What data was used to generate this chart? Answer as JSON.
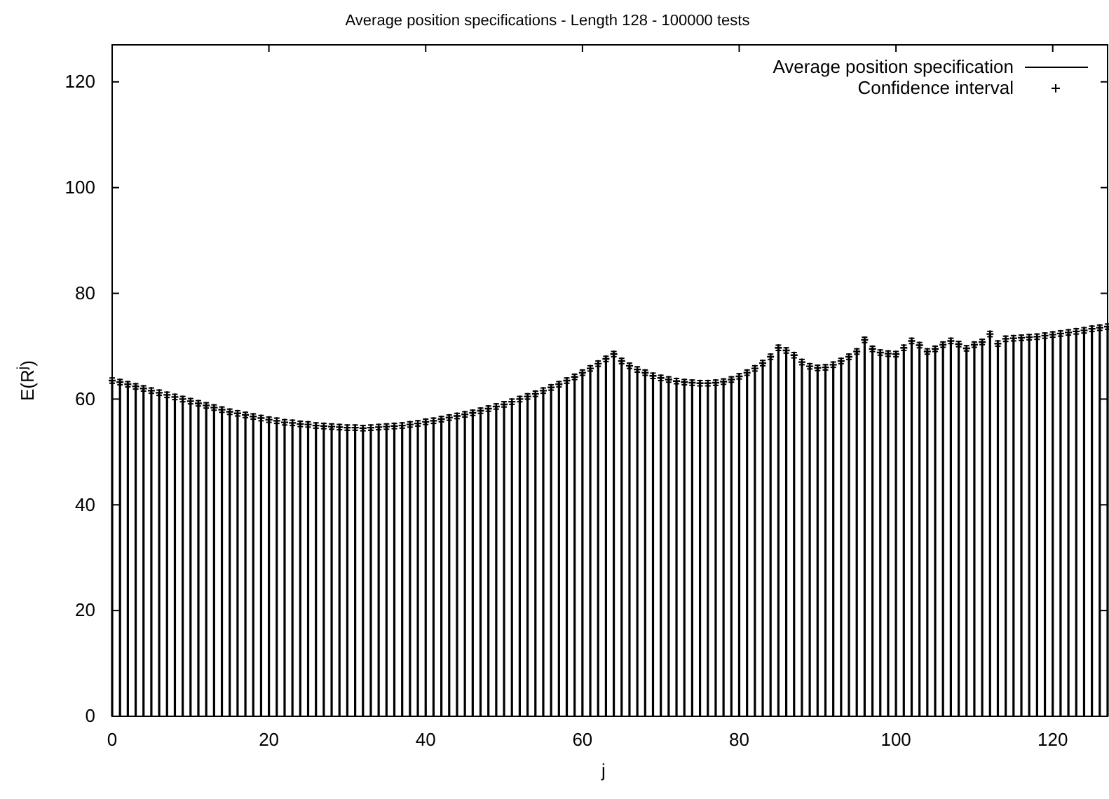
{
  "chart_data": {
    "type": "bar",
    "title": "Average position specifications - Length 128 - 100000 tests",
    "xlabel": "j",
    "ylabel": "E(R$^{j}$)",
    "x": [
      0,
      1,
      2,
      3,
      4,
      5,
      6,
      7,
      8,
      9,
      10,
      11,
      12,
      13,
      14,
      15,
      16,
      17,
      18,
      19,
      20,
      21,
      22,
      23,
      24,
      25,
      26,
      27,
      28,
      29,
      30,
      31,
      32,
      33,
      34,
      35,
      36,
      37,
      38,
      39,
      40,
      41,
      42,
      43,
      44,
      45,
      46,
      47,
      48,
      49,
      50,
      51,
      52,
      53,
      54,
      55,
      56,
      57,
      58,
      59,
      60,
      61,
      62,
      63,
      64,
      65,
      66,
      67,
      68,
      69,
      70,
      71,
      72,
      73,
      74,
      75,
      76,
      77,
      78,
      79,
      80,
      81,
      82,
      83,
      84,
      85,
      86,
      87,
      88,
      89,
      90,
      91,
      92,
      93,
      94,
      95,
      96,
      97,
      98,
      99,
      100,
      101,
      102,
      103,
      104,
      105,
      106,
      107,
      108,
      109,
      110,
      111,
      112,
      113,
      114,
      115,
      116,
      117,
      118,
      119,
      120,
      121,
      122,
      123,
      124,
      125,
      126,
      127
    ],
    "xlim": [
      0,
      127
    ],
    "xticks": [
      0,
      20,
      40,
      60,
      80,
      100,
      120
    ],
    "ylim": [
      0,
      127
    ],
    "yticks": [
      0,
      20,
      40,
      60,
      80,
      100,
      120
    ],
    "grid": false,
    "legend": "top right",
    "series": [
      {
        "name": "Average position specification",
        "color": "#000000",
        "line_style": "solid",
        "values": [
          63.5,
          63.2,
          62.8,
          62.4,
          62.0,
          61.6,
          61.2,
          60.8,
          60.4,
          60.0,
          59.6,
          59.2,
          58.8,
          58.4,
          58.0,
          57.6,
          57.3,
          57.0,
          56.7,
          56.4,
          56.1,
          55.9,
          55.6,
          55.5,
          55.3,
          55.2,
          55.0,
          54.9,
          54.8,
          54.7,
          54.6,
          54.6,
          54.5,
          54.6,
          54.7,
          54.8,
          54.9,
          55.0,
          55.2,
          55.4,
          55.7,
          55.9,
          56.2,
          56.5,
          56.8,
          57.1,
          57.4,
          57.8,
          58.2,
          58.6,
          59.0,
          59.5,
          60.0,
          60.5,
          61.0,
          61.6,
          62.2,
          62.8,
          63.5,
          64.2,
          65.0,
          65.8,
          66.7,
          67.6,
          68.5,
          67.2,
          66.3,
          65.6,
          65.0,
          64.4,
          64.0,
          63.7,
          63.4,
          63.2,
          63.1,
          63.0,
          63.0,
          63.1,
          63.3,
          63.7,
          64.3,
          65.0,
          65.8,
          66.8,
          68.0,
          69.7,
          69.2,
          68.3,
          67.0,
          66.2,
          65.9,
          66.0,
          66.5,
          67.2,
          68.0,
          69.0,
          71.2,
          69.5,
          68.8,
          68.6,
          68.5,
          69.7,
          71.0,
          70.2,
          69.0,
          69.5,
          70.3,
          71.0,
          70.4,
          69.6,
          70.3,
          70.8,
          72.3,
          70.5,
          71.4,
          71.5,
          71.6,
          71.7,
          71.8,
          72.0,
          72.2,
          72.4,
          72.6,
          72.8,
          73.0,
          73.3,
          73.5,
          73.7
        ]
      },
      {
        "name": "Confidence interval",
        "type": "scatter",
        "color": "#000000",
        "marker": "cross",
        "values": [
          63.5,
          63.2,
          62.8,
          62.4,
          62.0,
          61.6,
          61.2,
          60.8,
          60.4,
          60.0,
          59.6,
          59.2,
          58.8,
          58.4,
          58.0,
          57.6,
          57.3,
          57.0,
          56.7,
          56.4,
          56.1,
          55.9,
          55.6,
          55.5,
          55.3,
          55.2,
          55.0,
          54.9,
          54.8,
          54.7,
          54.6,
          54.6,
          54.5,
          54.6,
          54.7,
          54.8,
          54.9,
          55.0,
          55.2,
          55.4,
          55.7,
          55.9,
          56.2,
          56.5,
          56.8,
          57.1,
          57.4,
          57.8,
          58.2,
          58.6,
          59.0,
          59.5,
          60.0,
          60.5,
          61.0,
          61.6,
          62.2,
          62.8,
          63.5,
          64.2,
          65.0,
          65.8,
          66.7,
          67.6,
          68.5,
          67.2,
          66.3,
          65.6,
          65.0,
          64.4,
          64.0,
          63.7,
          63.4,
          63.2,
          63.1,
          63.0,
          63.0,
          63.1,
          63.3,
          63.7,
          64.3,
          65.0,
          65.8,
          66.8,
          68.0,
          69.7,
          69.2,
          68.3,
          67.0,
          66.2,
          65.9,
          66.0,
          66.5,
          67.2,
          68.0,
          69.0,
          71.2,
          69.5,
          68.8,
          68.6,
          68.5,
          69.7,
          71.0,
          70.2,
          69.0,
          69.5,
          70.3,
          71.0,
          70.4,
          69.6,
          70.3,
          70.8,
          72.3,
          70.5,
          71.4,
          71.5,
          71.6,
          71.7,
          71.8,
          72.0,
          72.2,
          72.4,
          72.6,
          72.8,
          73.0,
          73.3,
          73.5,
          73.7
        ],
        "errors": [
          0.5,
          0.5,
          0.5,
          0.5,
          0.5,
          0.5,
          0.5,
          0.5,
          0.5,
          0.5,
          0.5,
          0.5,
          0.5,
          0.5,
          0.5,
          0.5,
          0.5,
          0.5,
          0.5,
          0.5,
          0.5,
          0.5,
          0.5,
          0.5,
          0.5,
          0.5,
          0.5,
          0.5,
          0.5,
          0.5,
          0.5,
          0.5,
          0.5,
          0.5,
          0.5,
          0.5,
          0.5,
          0.5,
          0.5,
          0.5,
          0.5,
          0.5,
          0.5,
          0.5,
          0.5,
          0.5,
          0.5,
          0.5,
          0.5,
          0.5,
          0.5,
          0.5,
          0.5,
          0.5,
          0.5,
          0.5,
          0.5,
          0.5,
          0.5,
          0.5,
          0.5,
          0.5,
          0.5,
          0.5,
          0.5,
          0.5,
          0.5,
          0.5,
          0.5,
          0.5,
          0.5,
          0.5,
          0.5,
          0.5,
          0.5,
          0.5,
          0.5,
          0.5,
          0.5,
          0.5,
          0.5,
          0.5,
          0.5,
          0.5,
          0.5,
          0.5,
          0.5,
          0.5,
          0.5,
          0.5,
          0.5,
          0.5,
          0.5,
          0.5,
          0.5,
          0.5,
          0.5,
          0.5,
          0.5,
          0.5,
          0.5,
          0.5,
          0.5,
          0.5,
          0.5,
          0.5,
          0.5,
          0.5,
          0.5,
          0.5,
          0.5,
          0.5,
          0.5,
          0.5,
          0.5,
          0.5,
          0.5,
          0.5,
          0.5,
          0.5,
          0.5,
          0.5,
          0.5,
          0.5,
          0.5,
          0.5,
          0.5,
          0.5
        ]
      }
    ]
  }
}
